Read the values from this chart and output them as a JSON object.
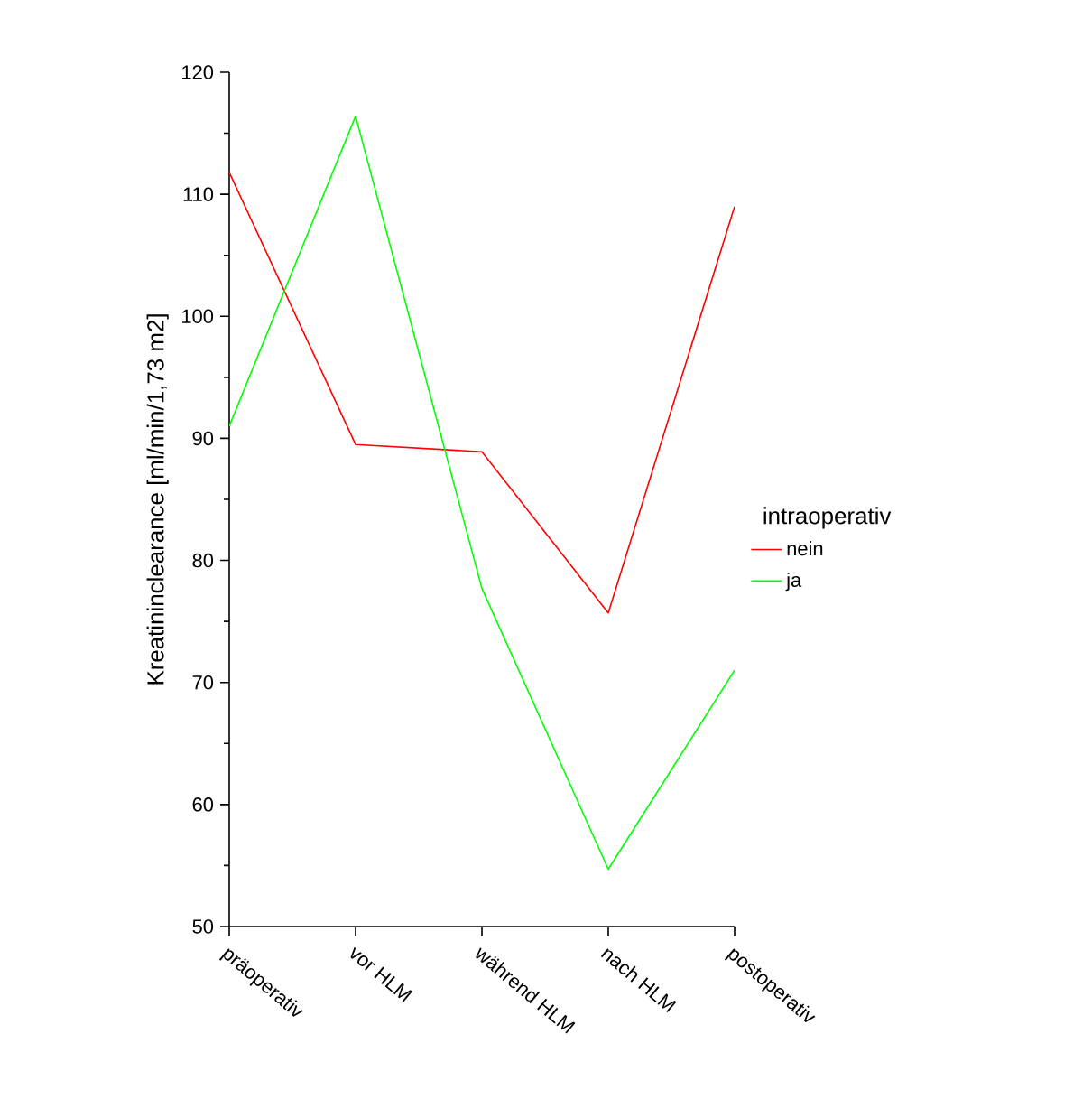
{
  "chart_data": {
    "type": "line",
    "ylabel": "Kreatininclearance [ml/min/1,73 m2]",
    "legend_title": "intraoperativ",
    "categories": [
      "präoperativ",
      "vor HLM",
      "während HLM",
      "nach HLM",
      "postoperativ"
    ],
    "series": [
      {
        "name": "nein",
        "color": "#ff0000",
        "values": [
          111.8,
          89.5,
          88.9,
          75.7,
          109
        ]
      },
      {
        "name": "ja",
        "color": "#00ff00",
        "values": [
          91,
          116.4,
          77.7,
          54.7,
          71
        ]
      }
    ],
    "ylim": [
      50,
      120
    ],
    "yticks": [
      50,
      60,
      70,
      80,
      90,
      100,
      110,
      120
    ],
    "grid": false,
    "legend": "right",
    "marker": "none",
    "line_style": "solid"
  }
}
